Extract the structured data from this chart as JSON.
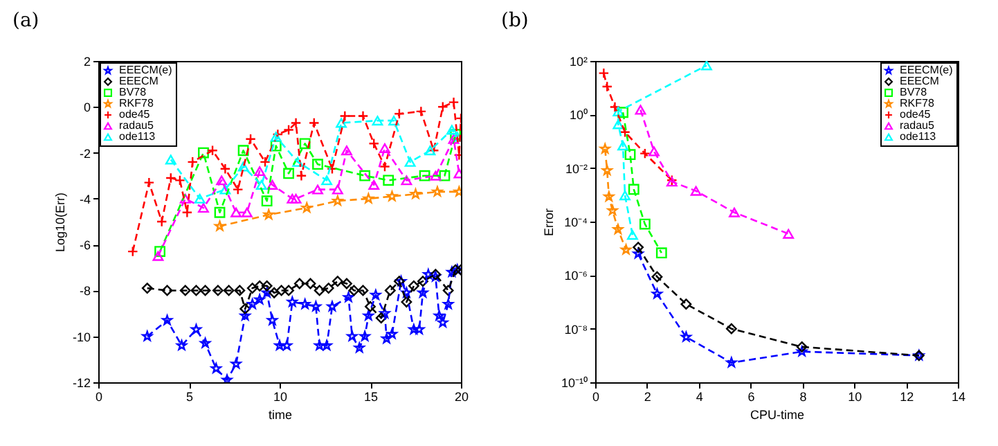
{
  "chart_data": [
    {
      "type": "line",
      "title": "(a)",
      "xlabel": "time",
      "ylabel": "Log10(Err)",
      "xlim": [
        0,
        20
      ],
      "xticks": [
        0,
        5,
        10,
        15,
        20
      ],
      "ylim": [
        -12,
        2
      ],
      "yticks": [
        -12,
        -10,
        -8,
        -6,
        -4,
        -2,
        0,
        2
      ],
      "legend": "top left",
      "line_style": "dashed",
      "series": [
        {
          "name": "EEECM(e)",
          "color": "#0000ff",
          "marker": "star",
          "x": [
            2.7,
            3.8,
            4.6,
            5.4,
            5.9,
            6.5,
            7.1,
            7.6,
            8.1,
            8.5,
            8.9,
            9.3,
            9.6,
            10.0,
            10.4,
            10.7,
            11.4,
            12.0,
            12.2,
            12.6,
            12.9,
            13.8,
            14.0,
            14.4,
            14.7,
            14.9,
            15.3,
            15.8,
            15.9,
            16.2,
            16.7,
            17.0,
            17.4,
            17.7,
            17.9,
            18.2,
            18.6,
            18.8,
            19.0,
            19.3,
            19.5,
            19.8
          ],
          "values": [
            -10.0,
            -9.3,
            -10.4,
            -9.7,
            -10.3,
            -11.4,
            -11.9,
            -11.2,
            -9.1,
            -8.6,
            -8.4,
            -8.1,
            -9.3,
            -10.4,
            -10.4,
            -8.5,
            -8.6,
            -8.7,
            -10.4,
            -10.4,
            -8.7,
            -8.3,
            -10.0,
            -10.5,
            -10.0,
            -9.1,
            -8.2,
            -9.0,
            -10.1,
            -9.9,
            -7.6,
            -8.1,
            -9.7,
            -9.7,
            -8.1,
            -7.3,
            -7.4,
            -9.1,
            -9.4,
            -8.6,
            -7.2,
            -7.1
          ]
        },
        {
          "name": "EEECM",
          "color": "#000000",
          "marker": "diamond",
          "x": [
            2.7,
            3.8,
            4.8,
            5.4,
            5.9,
            6.6,
            7.2,
            7.8,
            8.1,
            8.5,
            8.9,
            9.3,
            9.7,
            10.1,
            10.5,
            11.1,
            11.7,
            12.2,
            12.7,
            13.2,
            13.7,
            14.1,
            14.6,
            15.0,
            15.6,
            16.1,
            16.6,
            17.0,
            17.4,
            17.9,
            18.6,
            19.3,
            19.7,
            20.0
          ],
          "values": [
            -7.9,
            -8.0,
            -8.0,
            -8.0,
            -8.0,
            -8.0,
            -8.0,
            -8.0,
            -8.8,
            -7.9,
            -7.8,
            -7.8,
            -8.1,
            -8.0,
            -8.0,
            -7.7,
            -7.7,
            -8.0,
            -7.9,
            -7.6,
            -7.7,
            -8.0,
            -8.0,
            -8.7,
            -9.2,
            -8.0,
            -7.6,
            -8.5,
            -7.8,
            -7.6,
            -7.3,
            -8.0,
            -7.1,
            -7.1
          ]
        },
        {
          "name": "BV78",
          "color": "#00ff00",
          "marker": "square",
          "x": [
            3.4,
            5.8,
            6.7,
            8.0,
            9.3,
            9.8,
            10.5,
            11.4,
            12.1,
            14.7,
            16.0,
            18.0,
            19.1,
            19.7
          ],
          "values": [
            -6.3,
            -2.0,
            -4.6,
            -1.9,
            -4.1,
            -1.7,
            -2.9,
            -1.6,
            -2.5,
            -3.0,
            -3.2,
            -3.0,
            -3.0,
            -1.2
          ]
        },
        {
          "name": "RKF78",
          "color": "#ff8c00",
          "marker": "star",
          "x": [
            6.7,
            9.4,
            11.5,
            13.2,
            14.9,
            16.2,
            17.5,
            18.7,
            19.9
          ],
          "values": [
            -5.2,
            -4.7,
            -4.4,
            -4.1,
            -4.0,
            -3.9,
            -3.8,
            -3.7,
            -3.7
          ]
        },
        {
          "name": "ode45",
          "color": "#ff0000",
          "marker": "cross",
          "x": [
            1.9,
            2.8,
            3.5,
            4.0,
            4.5,
            4.9,
            5.2,
            6.3,
            7.0,
            7.7,
            8.4,
            9.2,
            9.9,
            10.5,
            10.9,
            11.2,
            11.9,
            12.9,
            13.6,
            14.6,
            15.2,
            15.8,
            16.6,
            17.8,
            18.5,
            19.0,
            19.6,
            19.9,
            20.0
          ],
          "values": [
            -6.3,
            -3.3,
            -5.0,
            -3.1,
            -3.2,
            -4.6,
            -2.4,
            -1.9,
            -2.7,
            -3.6,
            -1.4,
            -2.4,
            -1.2,
            -1.0,
            -0.7,
            -3.0,
            -0.7,
            -2.7,
            -0.4,
            -0.4,
            -1.6,
            -2.6,
            -0.3,
            -0.2,
            -1.9,
            0.0,
            0.2,
            -2.1,
            -0.5
          ]
        },
        {
          "name": "radau5",
          "color": "#ff00ff",
          "marker": "triangle",
          "x": [
            3.3,
            4.8,
            5.8,
            6.8,
            7.6,
            8.2,
            8.9,
            9.6,
            10.7,
            10.9,
            12.1,
            13.2,
            13.7,
            15.2,
            15.8,
            17.0,
            18.6,
            19.6,
            19.9
          ],
          "values": [
            -6.5,
            -4.0,
            -4.4,
            -3.2,
            -4.6,
            -4.6,
            -2.8,
            -3.4,
            -4.0,
            -4.0,
            -3.6,
            -3.6,
            -1.9,
            -3.4,
            -1.8,
            -3.2,
            -3.0,
            -1.4,
            -2.9
          ]
        },
        {
          "name": "ode113",
          "color": "#00ffff",
          "marker": "triangle",
          "x": [
            4.0,
            5.6,
            7.0,
            8.0,
            9.0,
            9.8,
            11.0,
            12.6,
            13.4,
            15.4,
            16.3,
            17.2,
            18.3,
            19.5,
            19.8
          ],
          "values": [
            -2.3,
            -4.0,
            -3.6,
            -2.6,
            -3.4,
            -1.3,
            -2.4,
            -3.2,
            -0.7,
            -0.6,
            -0.6,
            -2.4,
            -1.9,
            -1.0,
            -1.3
          ]
        }
      ]
    },
    {
      "type": "line",
      "title": "(b)",
      "xlabel": "CPU-time",
      "ylabel": "Error",
      "log": true,
      "xlim": [
        0,
        14
      ],
      "xticks": [
        0,
        2,
        4,
        6,
        8,
        10,
        12,
        14
      ],
      "ylim": [
        1e-10,
        100
      ],
      "yticks": [
        {
          "value": 1e-10,
          "label": "10⁻¹⁰"
        },
        {
          "value": 1e-08,
          "label": "10⁻⁸"
        },
        {
          "value": 1e-06,
          "label": "10⁻⁶"
        },
        {
          "value": 0.0001,
          "label": "10⁻⁴"
        },
        {
          "value": 0.01,
          "label": "10⁻²"
        },
        {
          "value": 1,
          "label": "10⁰"
        },
        {
          "value": 100,
          "label": "10²"
        }
      ],
      "legend": "top right",
      "line_style": "dashed",
      "series": [
        {
          "name": "EEECM(e)",
          "color": "#0000ff",
          "marker": "star",
          "x": [
            1.66,
            2.39,
            3.51,
            5.26,
            7.98,
            12.5
          ],
          "values": [
            6.3e-06,
            2e-07,
            4.9e-09,
            5.4e-10,
            1.4e-09,
            1e-09
          ]
        },
        {
          "name": "EEECM",
          "color": "#000000",
          "marker": "diamond",
          "x": [
            1.66,
            2.39,
            3.51,
            5.26,
            7.98,
            12.5
          ],
          "values": [
            1.1e-05,
            8.7e-07,
            8.3e-08,
            1e-08,
            2.1e-09,
            1e-09
          ]
        },
        {
          "name": "BV78",
          "color": "#00ff00",
          "marker": "square",
          "x": [
            1.07,
            1.35,
            1.49,
            1.92,
            2.56
          ],
          "values": [
            1.2,
            0.032,
            0.0016,
            8.1e-05,
            6.8e-06
          ]
        },
        {
          "name": "RKF78",
          "color": "#ff8c00",
          "marker": "star",
          "x": [
            0.38,
            0.46,
            0.53,
            0.67,
            0.88,
            1.19
          ],
          "values": [
            0.052,
            0.0081,
            0.00085,
            0.00026,
            5.1e-05,
            8.9e-06
          ]
        },
        {
          "name": "ode45",
          "color": "#ff0000",
          "marker": "cross",
          "x": [
            0.33,
            0.46,
            0.76,
            1.15,
            1.92,
            2.96
          ],
          "values": [
            35,
            11,
            1.9,
            0.22,
            0.035,
            0.0035
          ]
        },
        {
          "name": "radau5",
          "color": "#ff00ff",
          "marker": "triangle",
          "x": [
            1.75,
            2.27,
            2.96,
            3.89,
            5.37,
            7.46
          ],
          "values": [
            1.5,
            0.042,
            0.0031,
            0.0014,
            0.00022,
            3.5e-05
          ]
        },
        {
          "name": "ode113",
          "color": "#00ffff",
          "marker": "triangle",
          "x": [
            1.44,
            1.15,
            1.07,
            0.89,
            0.89,
            4.3
          ],
          "values": [
            3.2e-05,
            0.00095,
            0.069,
            0.43,
            1.3,
            68
          ]
        }
      ]
    }
  ]
}
